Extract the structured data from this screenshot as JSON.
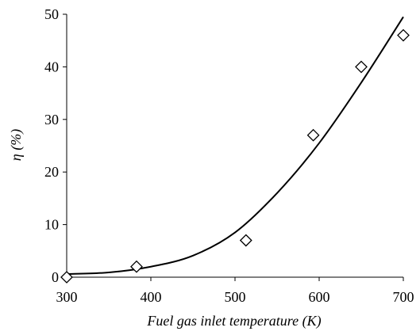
{
  "chart_data": {
    "type": "scatter",
    "title": "",
    "xlabel": "Fuel gas inlet temperature (K)",
    "ylabel": "η (%)",
    "xlim": [
      300,
      700
    ],
    "ylim": [
      0,
      50
    ],
    "x_ticks": [
      "300",
      "400",
      "500",
      "600",
      "700"
    ],
    "y_ticks": [
      "0",
      "10",
      "20",
      "30",
      "40",
      "50"
    ],
    "grid": false,
    "legend": "none",
    "series": [
      {
        "type": "scatter",
        "marker": "open-diamond",
        "points": [
          {
            "x": 300,
            "y": 0
          },
          {
            "x": 383,
            "y": 2
          },
          {
            "x": 513,
            "y": 7
          },
          {
            "x": 593,
            "y": 27
          },
          {
            "x": 650,
            "y": 40
          },
          {
            "x": 700,
            "y": 46
          }
        ]
      },
      {
        "type": "line",
        "style": "smooth",
        "points": [
          {
            "x": 300,
            "y": 0.6
          },
          {
            "x": 350,
            "y": 0.9
          },
          {
            "x": 400,
            "y": 2.0
          },
          {
            "x": 450,
            "y": 4.1
          },
          {
            "x": 500,
            "y": 8.5
          },
          {
            "x": 550,
            "y": 16.0
          },
          {
            "x": 600,
            "y": 25.5
          },
          {
            "x": 650,
            "y": 37.0
          },
          {
            "x": 700,
            "y": 49.5
          }
        ]
      }
    ],
    "colors": {
      "axis": "#000000",
      "line": "#000000",
      "marker": "#000000"
    }
  }
}
